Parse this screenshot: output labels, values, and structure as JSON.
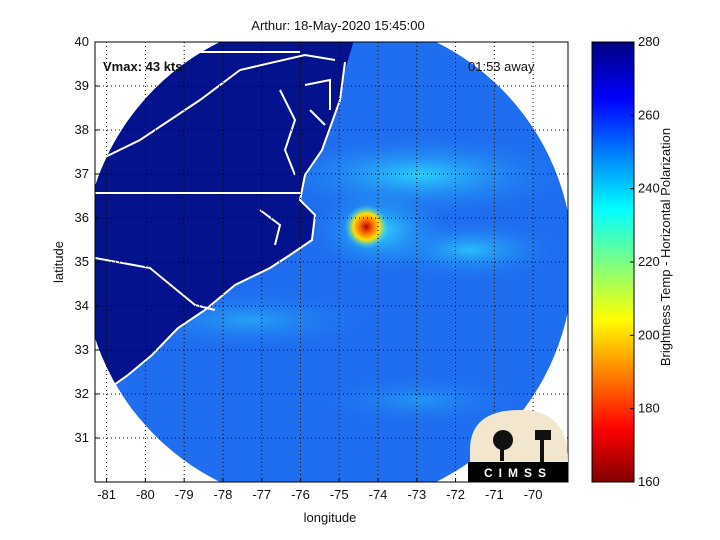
{
  "chart_data": {
    "type": "heatmap",
    "title": "Arthur: 18-May-2020 15:45:00",
    "xlabel": "longitude",
    "ylabel": "latitude",
    "xlim": [
      -81.3,
      -69.1
    ],
    "ylim": [
      30.0,
      40.0
    ],
    "x_ticks": [
      -81,
      -80,
      -79,
      -78,
      -77,
      -76,
      -75,
      -74,
      -73,
      -72,
      -71,
      -70
    ],
    "y_ticks": [
      31,
      32,
      33,
      34,
      35,
      36,
      37,
      38,
      39,
      40
    ],
    "grid": true,
    "colorbar": {
      "label": "Brightness Temp - Horizontal Polarization",
      "min": 160,
      "max": 280,
      "ticks": [
        160,
        180,
        200,
        220,
        240,
        260,
        280
      ],
      "colormap": "jet"
    },
    "storm_center": {
      "lon": -74.3,
      "lat": 35.8
    },
    "annotations": {
      "vmax": "Vmax: 43 kts",
      "time_away": "01:53 away"
    },
    "logo_text": "CIMSS"
  },
  "colors": {
    "land": "#05128e",
    "ocean_base": "#1f6ef0",
    "coastline": "#ffffff",
    "frame": "#000000"
  }
}
